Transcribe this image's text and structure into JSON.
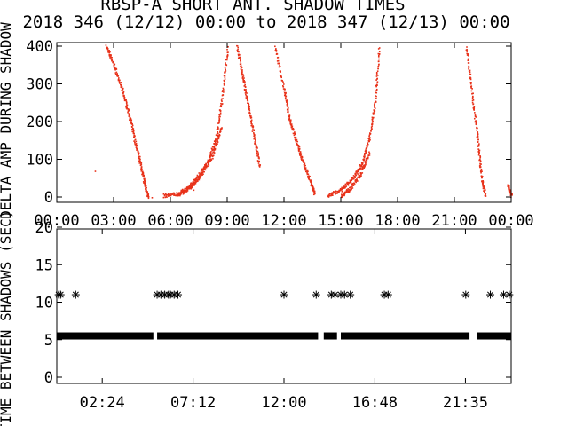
{
  "title": "RBSP-A SHORT ANT. SHADOW TIMES",
  "subtitle": "2018 346 (12/12) 00:00 to 2018 347 (12/13) 00:00",
  "colors": {
    "red": "#e8321a",
    "black": "#000000",
    "axis": "#000000",
    "background": "#ffffff"
  },
  "chart_data": [
    {
      "type": "scatter",
      "panel": "top",
      "ylabel": "DELTA AMP DURING SHADOW",
      "xlim_hours": [
        0,
        24
      ],
      "ylim": [
        0,
        400
      ],
      "x_ticks": [
        "00:00",
        "03:00",
        "06:00",
        "09:00",
        "12:00",
        "15:00",
        "18:00",
        "21:00",
        "00:00"
      ],
      "y_ticks": [
        "0",
        "100",
        "200",
        "300",
        "400"
      ],
      "marker_color": "#e8321a",
      "branches": [
        {
          "x": [
            2.6,
            3.0,
            3.4,
            3.8,
            4.1,
            4.4,
            4.6,
            4.8
          ],
          "y": [
            400,
            350,
            290,
            220,
            150,
            90,
            40,
            0
          ]
        },
        {
          "x": [
            5.6,
            6.4,
            7.0,
            7.5,
            8.0,
            8.4,
            8.7,
            9.0
          ],
          "y": [
            5,
            10,
            30,
            60,
            100,
            160,
            260,
            400
          ]
        },
        {
          "x": [
            6.3,
            7.0,
            7.6,
            8.2,
            8.7
          ],
          "y": [
            5,
            25,
            60,
            110,
            190
          ]
        },
        {
          "x": [
            9.5,
            9.8,
            10.1,
            10.4,
            10.7
          ],
          "y": [
            400,
            320,
            240,
            160,
            80
          ]
        },
        {
          "x": [
            11.5,
            12.0,
            12.3,
            12.7,
            13.0,
            13.4,
            13.6
          ],
          "y": [
            400,
            280,
            200,
            140,
            90,
            40,
            10
          ]
        },
        {
          "x": [
            14.3,
            15.0,
            15.6,
            16.1,
            16.5,
            16.8,
            17.0
          ],
          "y": [
            5,
            20,
            50,
            90,
            160,
            260,
            400
          ]
        },
        {
          "x": [
            15.0,
            15.5,
            16.0,
            16.5
          ],
          "y": [
            5,
            25,
            60,
            120
          ]
        },
        {
          "x": [
            21.6,
            21.9,
            22.2,
            22.4,
            22.6
          ],
          "y": [
            400,
            280,
            160,
            60,
            5
          ]
        },
        {
          "x": [
            23.8,
            24.0
          ],
          "y": [
            30,
            5
          ]
        }
      ],
      "isolated_points": [
        {
          "x": 2.0,
          "y": 70
        },
        {
          "x": 5.0,
          "y": 0
        },
        {
          "x": 7.2,
          "y": 20
        }
      ]
    },
    {
      "type": "scatter",
      "panel": "bottom",
      "ylabel": "TIME BETWEEN SHADOWS (SEC)",
      "xlim_hours": [
        0,
        24
      ],
      "ylim": [
        0,
        20
      ],
      "x_ticks": [
        "02:24",
        "07:12",
        "12:00",
        "16:48",
        "21:35"
      ],
      "x_tick_hours": [
        2.4,
        7.2,
        12.0,
        16.8,
        21.583
      ],
      "y_ticks": [
        "0",
        "5",
        "10",
        "15",
        "20"
      ],
      "marker": "asterisk",
      "marker_color": "#000000",
      "baseline_value": 5.5,
      "baseline_segments": [
        [
          0.0,
          5.1
        ],
        [
          5.3,
          13.8
        ],
        [
          14.1,
          14.8
        ],
        [
          15.0,
          21.8
        ],
        [
          22.2,
          24.0
        ]
      ],
      "outliers": {
        "value": 11,
        "x": [
          0.1,
          0.2,
          1.0,
          5.3,
          5.5,
          5.7,
          5.9,
          6.0,
          6.2,
          6.4,
          12.0,
          13.7,
          14.5,
          14.7,
          15.0,
          15.2,
          15.5,
          17.3,
          17.5,
          21.6,
          22.9,
          23.6,
          23.9
        ]
      }
    }
  ]
}
